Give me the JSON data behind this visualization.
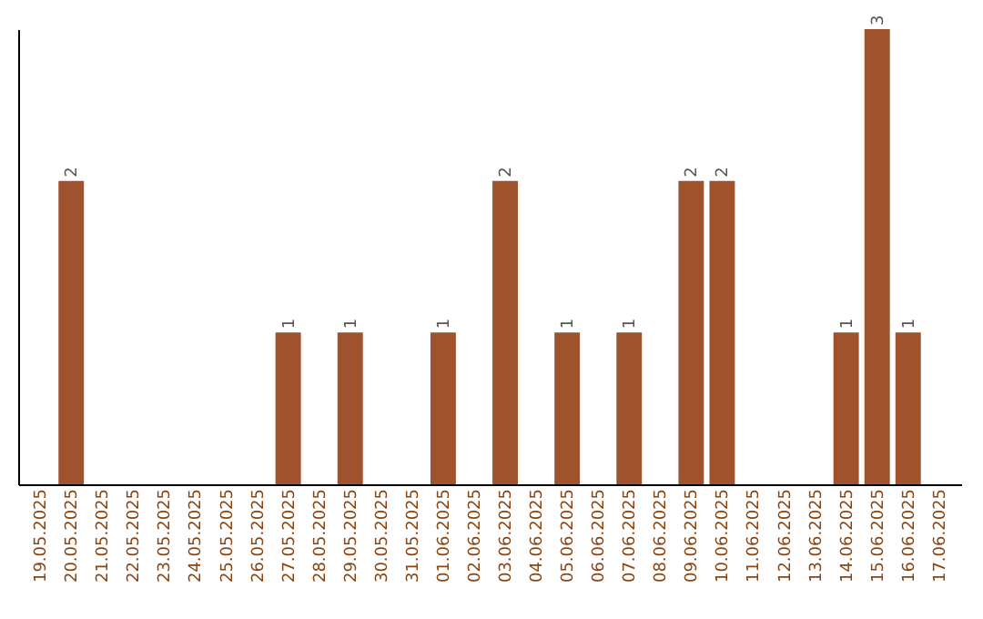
{
  "chart_data": {
    "type": "bar",
    "categories": [
      "19.05.2025",
      "20.05.2025",
      "21.05.2025",
      "22.05.2025",
      "23.05.2025",
      "24.05.2025",
      "25.05.2025",
      "26.05.2025",
      "27.05.2025",
      "28.05.2025",
      "29.05.2025",
      "30.05.2025",
      "31.05.2025",
      "01.06.2025",
      "02.06.2025",
      "03.06.2025",
      "04.06.2025",
      "05.06.2025",
      "06.06.2025",
      "07.06.2025",
      "08.06.2025",
      "09.06.2025",
      "10.06.2025",
      "11.06.2025",
      "12.06.2025",
      "13.06.2025",
      "14.06.2025",
      "15.06.2025",
      "16.06.2025",
      "17.06.2025"
    ],
    "values": [
      0,
      2,
      0,
      0,
      0,
      0,
      0,
      0,
      1,
      0,
      1,
      0,
      0,
      1,
      0,
      2,
      0,
      1,
      0,
      1,
      0,
      2,
      2,
      0,
      0,
      0,
      1,
      3,
      1,
      0
    ],
    "color": "#a0522d",
    "ylim": [
      0,
      3
    ],
    "value_labels": [
      null,
      "2",
      null,
      null,
      null,
      null,
      null,
      null,
      "1",
      null,
      "1",
      null,
      null,
      "1",
      null,
      "2",
      null,
      "1",
      null,
      "1",
      null,
      "2",
      "2",
      null,
      null,
      null,
      "1",
      "3",
      "1",
      null
    ],
    "tick_labels": "x",
    "grid": false
  }
}
